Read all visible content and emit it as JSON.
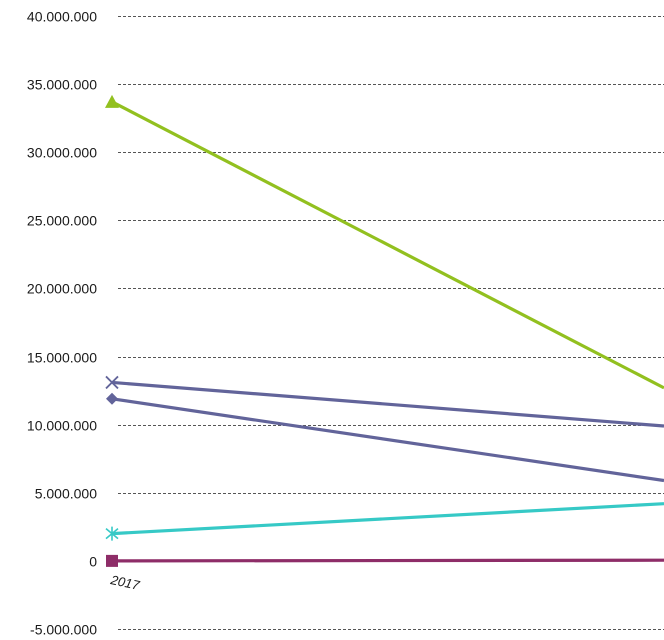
{
  "chart_data": {
    "type": "line",
    "title": "",
    "xlabel": "",
    "ylabel": "",
    "x": [
      "2017"
    ],
    "ylim": [
      -5000000,
      40000000
    ],
    "yticks": [
      -5000000,
      0,
      5000000,
      10000000,
      15000000,
      20000000,
      25000000,
      30000000,
      35000000,
      40000000
    ],
    "ytick_labels": [
      "-5.000.000",
      "0",
      "5.000.000",
      "10.000.000",
      "15.000.000",
      "20.000.000",
      "25.000.000",
      "30.000.000",
      "35.000.000",
      "40.000.000"
    ],
    "grid": true,
    "legend": "none",
    "series": [
      {
        "color": "#92c01f",
        "marker": "triangle",
        "values": [
          33700000
        ],
        "next_value_at_right_edge": 12700000
      },
      {
        "color": "#62649a",
        "marker": "x",
        "values": [
          13100000
        ],
        "next_value_at_right_edge": 9900000
      },
      {
        "color": "#62649a",
        "marker": "diamond",
        "values": [
          11900000
        ],
        "next_value_at_right_edge": 5900000
      },
      {
        "color": "#36c9c6",
        "marker": "asterisk",
        "values": [
          2000000
        ],
        "next_value_at_right_edge": 4200000
      },
      {
        "color": "#8e2d68",
        "marker": "square",
        "values": [
          0
        ],
        "next_value_at_right_edge": 50000
      }
    ]
  }
}
